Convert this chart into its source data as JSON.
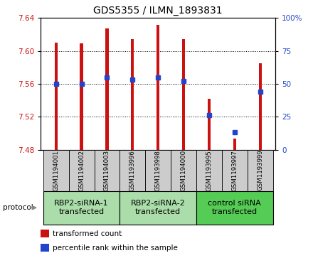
{
  "title": "GDS5355 / ILMN_1893831",
  "samples": [
    "GSM1194001",
    "GSM1194002",
    "GSM1194003",
    "GSM1193996",
    "GSM1193998",
    "GSM1194000",
    "GSM1193995",
    "GSM1193997",
    "GSM1193999"
  ],
  "bar_tops": [
    7.61,
    7.609,
    7.627,
    7.614,
    7.632,
    7.614,
    7.542,
    7.493,
    7.585
  ],
  "bar_bottom": 7.48,
  "percentile_ranks": [
    50,
    50,
    55,
    53,
    55,
    52,
    26,
    13,
    44
  ],
  "ylim": [
    7.48,
    7.64
  ],
  "yticks": [
    7.48,
    7.52,
    7.56,
    7.6,
    7.64
  ],
  "right_yticks": [
    0,
    25,
    50,
    75,
    100
  ],
  "right_ylabels": [
    "0",
    "25",
    "50",
    "75",
    "100%"
  ],
  "bar_color": "#cc1111",
  "dot_color": "#2244cc",
  "groups": [
    {
      "label": "RBP2-siRNA-1\ntransfected",
      "indices": [
        0,
        1,
        2
      ],
      "color": "#aaddaa"
    },
    {
      "label": "RBP2-siRNA-2\ntransfected",
      "indices": [
        3,
        4,
        5
      ],
      "color": "#aaddaa"
    },
    {
      "label": "control siRNA\ntransfected",
      "indices": [
        6,
        7,
        8
      ],
      "color": "#55cc55"
    }
  ],
  "cell_bg_color": "#cccccc",
  "title_fontsize": 10,
  "tick_fontsize": 7.5,
  "sample_fontsize": 6.2,
  "group_fontsize": 8,
  "legend_fontsize": 7.5
}
